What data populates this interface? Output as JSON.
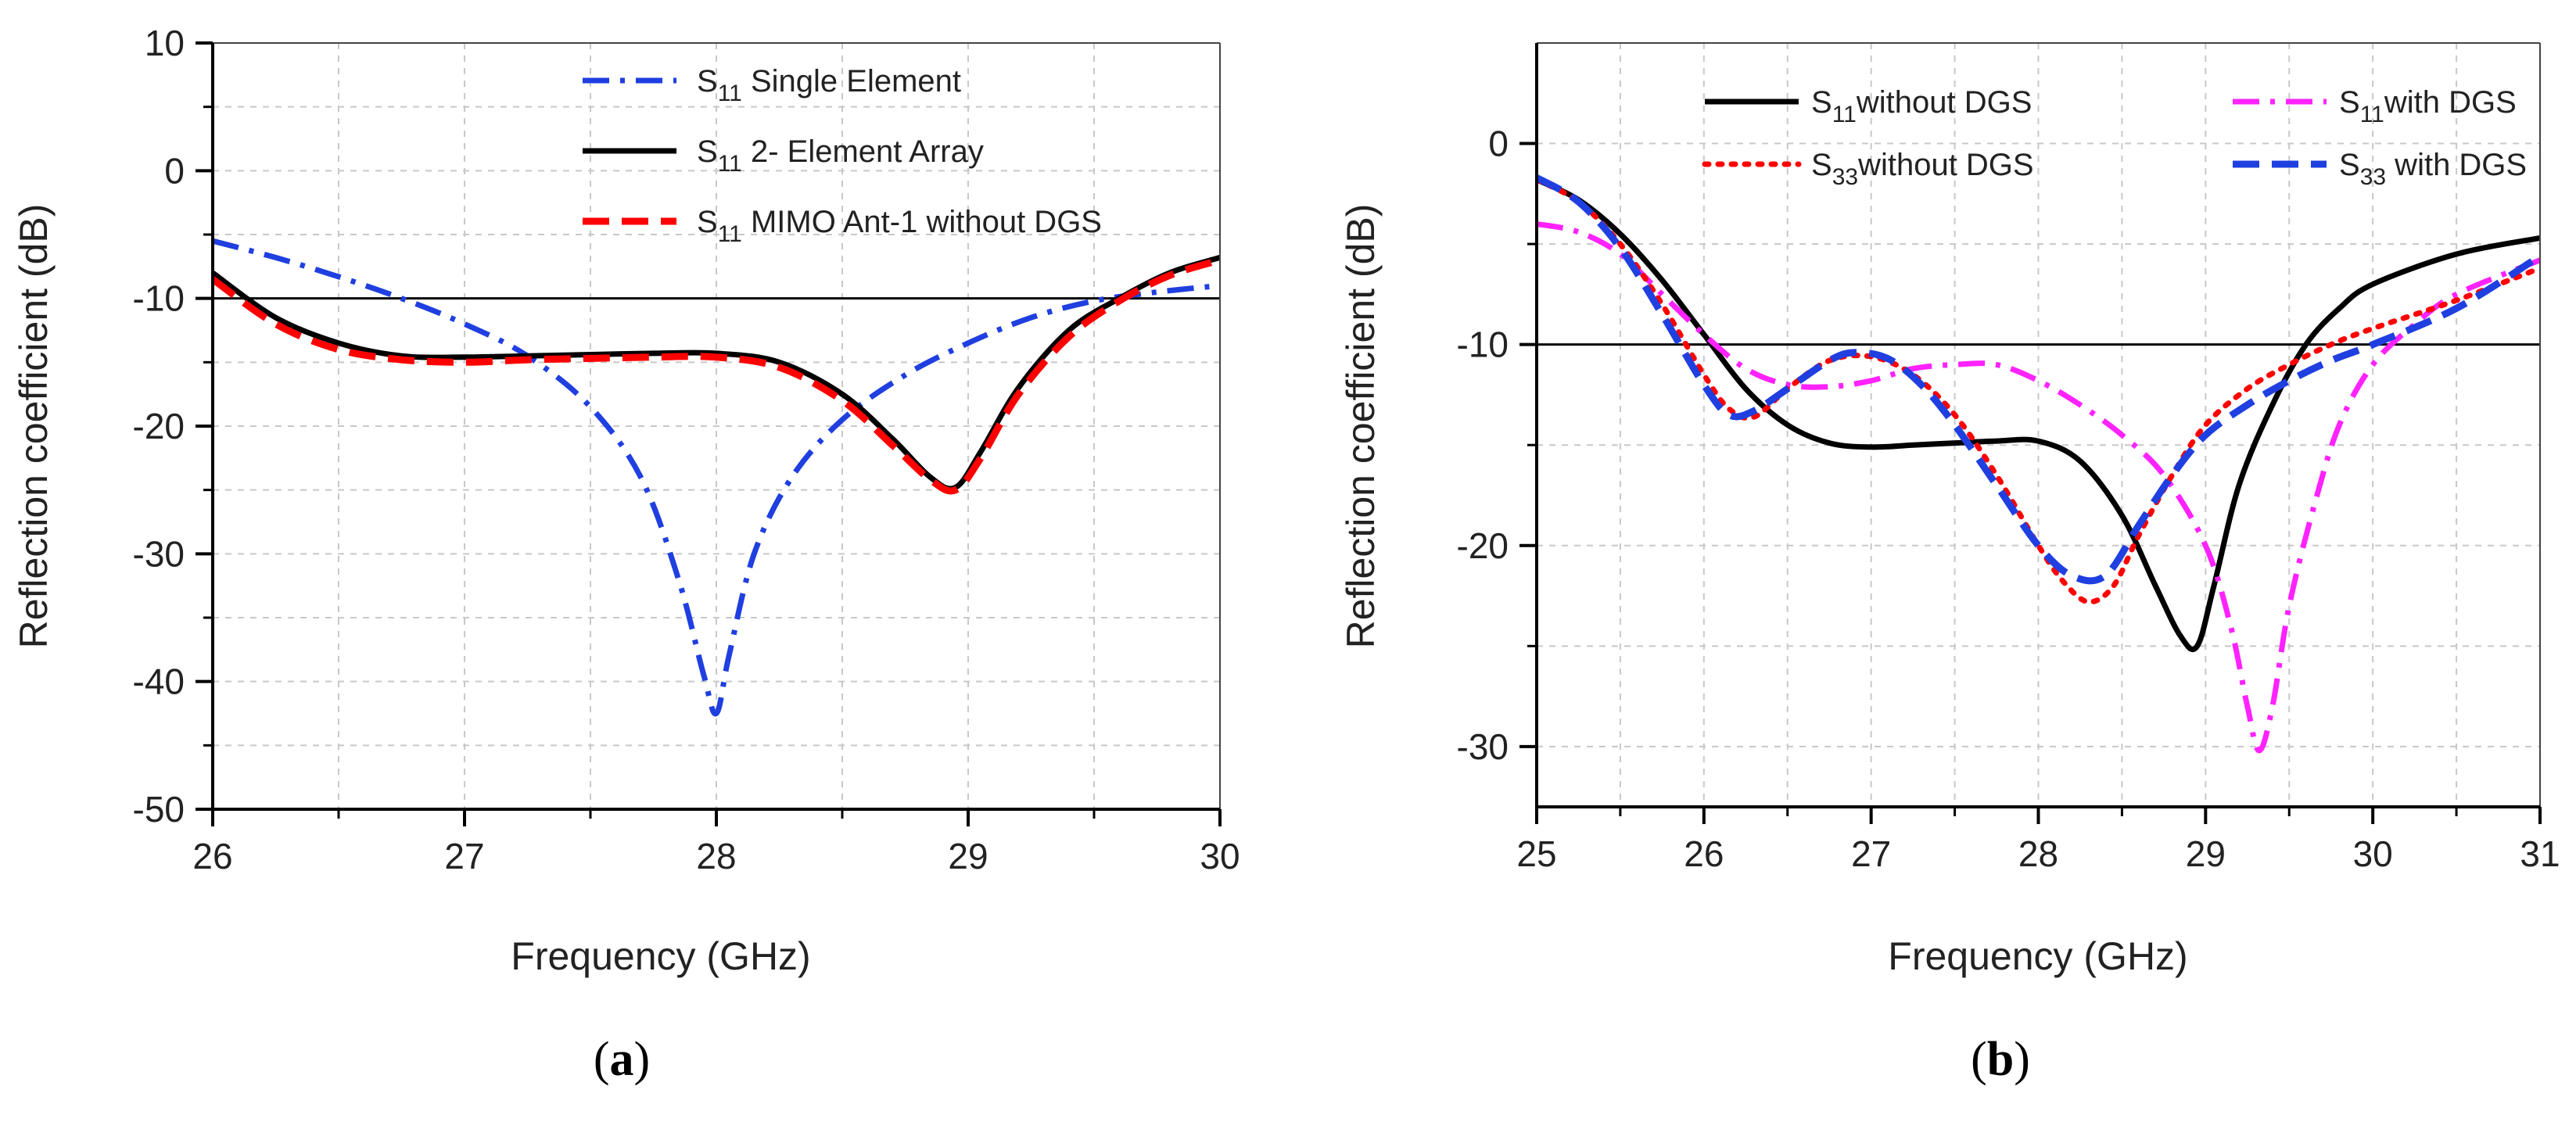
{
  "chart_data": [
    {
      "id": "a",
      "type": "line",
      "caption_letter": "a",
      "xlabel": "Frequency (GHz)",
      "ylabel": "Reflection coefficient (dB)",
      "xlim": [
        26,
        30
      ],
      "ylim": [
        -50,
        10
      ],
      "xticks": [
        26,
        27,
        28,
        29,
        30
      ],
      "yticks": [
        10,
        0,
        -10,
        -20,
        -30,
        -40,
        -50
      ],
      "xtick_labels": [
        "26",
        "27",
        "28",
        "29",
        "30"
      ],
      "ytick_labels": [
        "10",
        "0",
        "-10",
        "-20",
        "-30",
        "-40",
        "-50"
      ],
      "grid": true,
      "reference_line": -10,
      "legend_position": "top-center",
      "series": [
        {
          "name": "S11 Single Element",
          "legend_main": "S",
          "legend_sub": "11",
          "legend_rest": " Single Element",
          "color": "#1f3fe0",
          "style": "dashdot",
          "x": [
            26,
            26.25,
            26.5,
            26.75,
            27,
            27.25,
            27.5,
            27.7,
            27.85,
            27.95,
            28,
            28.05,
            28.15,
            28.3,
            28.5,
            28.75,
            29,
            29.25,
            29.5,
            29.75,
            30
          ],
          "y": [
            -5.5,
            -6.8,
            -8.3,
            -10,
            -12,
            -14.5,
            -18.5,
            -24,
            -32,
            -39.5,
            -42.5,
            -38,
            -30,
            -24,
            -19.5,
            -16,
            -13.5,
            -11.5,
            -10.2,
            -9.5,
            -9
          ]
        },
        {
          "name": "S11 2- Element Array",
          "legend_main": "S",
          "legend_sub": "11",
          "legend_rest": " 2- Element Array",
          "color": "#000000",
          "style": "solid",
          "x": [
            26,
            26.25,
            26.5,
            26.75,
            27,
            27.25,
            27.5,
            27.75,
            28,
            28.25,
            28.5,
            28.7,
            28.85,
            28.95,
            29.05,
            29.2,
            29.4,
            29.6,
            29.8,
            30
          ],
          "y": [
            -8,
            -11.5,
            -13.5,
            -14.5,
            -14.6,
            -14.5,
            -14.4,
            -14.3,
            -14.3,
            -15,
            -17.5,
            -21,
            -24,
            -24.8,
            -22,
            -17,
            -12.5,
            -10,
            -8,
            -6.8
          ]
        },
        {
          "name": "S11 MIMO Ant-1 without DGS",
          "legend_main": "S",
          "legend_sub": "11",
          "legend_rest": " MIMO Ant-1 without DGS",
          "color": "#ff0000",
          "style": "dash",
          "x": [
            26,
            26.25,
            26.5,
            26.75,
            27,
            27.25,
            27.5,
            27.75,
            28,
            28.25,
            28.5,
            28.7,
            28.85,
            28.95,
            29.05,
            29.2,
            29.4,
            29.6,
            29.8,
            30
          ],
          "y": [
            -8.5,
            -12,
            -14,
            -14.8,
            -15,
            -14.8,
            -14.7,
            -14.6,
            -14.6,
            -15.4,
            -18,
            -21.5,
            -24.2,
            -25,
            -22.5,
            -17.5,
            -13,
            -10.2,
            -8.2,
            -7
          ]
        }
      ]
    },
    {
      "id": "b",
      "type": "line",
      "caption_letter": "b",
      "xlabel": "Frequency (GHz)",
      "ylabel": "Reflection coefficient (dB)",
      "xlim": [
        25,
        31
      ],
      "ylim": [
        -33,
        5
      ],
      "xticks": [
        25,
        26,
        27,
        28,
        29,
        30,
        31
      ],
      "yticks": [
        0,
        -10,
        -20,
        -30
      ],
      "xtick_labels": [
        "25",
        "26",
        "27",
        "28",
        "29",
        "30",
        "31"
      ],
      "ytick_labels": [
        "0",
        "-10",
        "-20",
        "-30"
      ],
      "grid": true,
      "reference_line": -10,
      "legend_position": "top",
      "series": [
        {
          "name": "S11without DGS",
          "legend_main": "S",
          "legend_sub": "11",
          "legend_rest": "without DGS",
          "color": "#000000",
          "style": "solid",
          "x": [
            25,
            25.25,
            25.5,
            25.75,
            26,
            26.25,
            26.5,
            26.75,
            27,
            27.25,
            27.5,
            27.75,
            28,
            28.25,
            28.5,
            28.7,
            28.85,
            28.95,
            29.05,
            29.2,
            29.4,
            29.6,
            29.8,
            30,
            30.5,
            31
          ],
          "y": [
            -1.8,
            -2.8,
            -4.5,
            -6.8,
            -9.5,
            -12.2,
            -14,
            -14.9,
            -15.1,
            -15,
            -14.9,
            -14.8,
            -14.8,
            -15.8,
            -18.5,
            -22,
            -24.5,
            -25,
            -22,
            -17,
            -13,
            -10,
            -8.2,
            -7,
            -5.5,
            -4.7
          ]
        },
        {
          "name": "S11with DGS",
          "legend_main": "S",
          "legend_sub": "11",
          "legend_rest": "with DGS",
          "color": "#ff22ff",
          "style": "dashdot",
          "x": [
            25,
            25.25,
            25.5,
            25.75,
            26,
            26.25,
            26.5,
            26.75,
            27,
            27.25,
            27.5,
            27.75,
            28,
            28.25,
            28.5,
            28.75,
            29,
            29.15,
            29.25,
            29.32,
            29.4,
            29.5,
            29.65,
            29.8,
            30,
            30.25,
            30.5,
            31
          ],
          "y": [
            -4,
            -4.4,
            -5.5,
            -7.5,
            -9.5,
            -11.2,
            -12,
            -12.1,
            -11.8,
            -11.2,
            -11,
            -11,
            -11.8,
            -13,
            -14.5,
            -16.5,
            -20,
            -24,
            -28,
            -30.2,
            -28,
            -23,
            -18,
            -14,
            -11,
            -9,
            -7.5,
            -5.8
          ]
        },
        {
          "name": "S33without DGS",
          "legend_main": "S",
          "legend_sub": "33",
          "legend_rest": "without DGS",
          "color": "#ff0000",
          "style": "dot",
          "x": [
            25,
            25.25,
            25.5,
            25.75,
            26,
            26.15,
            26.3,
            26.5,
            26.75,
            27,
            27.25,
            27.5,
            27.75,
            28,
            28.15,
            28.3,
            28.45,
            28.6,
            28.8,
            29,
            29.25,
            29.5,
            29.75,
            30,
            30.5,
            31
          ],
          "y": [
            -1.8,
            -2.9,
            -5,
            -8,
            -11.5,
            -13.2,
            -13.6,
            -12.2,
            -10.8,
            -10.6,
            -11.5,
            -13.5,
            -16.5,
            -20,
            -21.8,
            -22.8,
            -22,
            -19.5,
            -16.5,
            -14,
            -12.2,
            -11,
            -10,
            -9.2,
            -7.8,
            -6.2
          ]
        },
        {
          "name": "S33 with DGS",
          "legend_main": "S",
          "legend_sub": "33",
          "legend_rest": " with DGS",
          "color": "#1f3fe0",
          "style": "dash",
          "x": [
            25,
            25.25,
            25.5,
            25.75,
            26,
            26.15,
            26.3,
            26.5,
            26.75,
            26.9,
            27.1,
            27.3,
            27.5,
            27.75,
            28,
            28.2,
            28.4,
            28.6,
            28.8,
            29,
            29.25,
            29.5,
            29.75,
            30,
            30.5,
            31
          ],
          "y": [
            -1.7,
            -2.9,
            -5.2,
            -8.5,
            -12,
            -13.5,
            -13.3,
            -12.2,
            -10.8,
            -10.4,
            -10.7,
            -12,
            -14,
            -17,
            -20,
            -21.5,
            -21.5,
            -19,
            -16.5,
            -14.5,
            -13,
            -11.8,
            -10.8,
            -10,
            -8.2,
            -5.6
          ]
        }
      ]
    }
  ]
}
